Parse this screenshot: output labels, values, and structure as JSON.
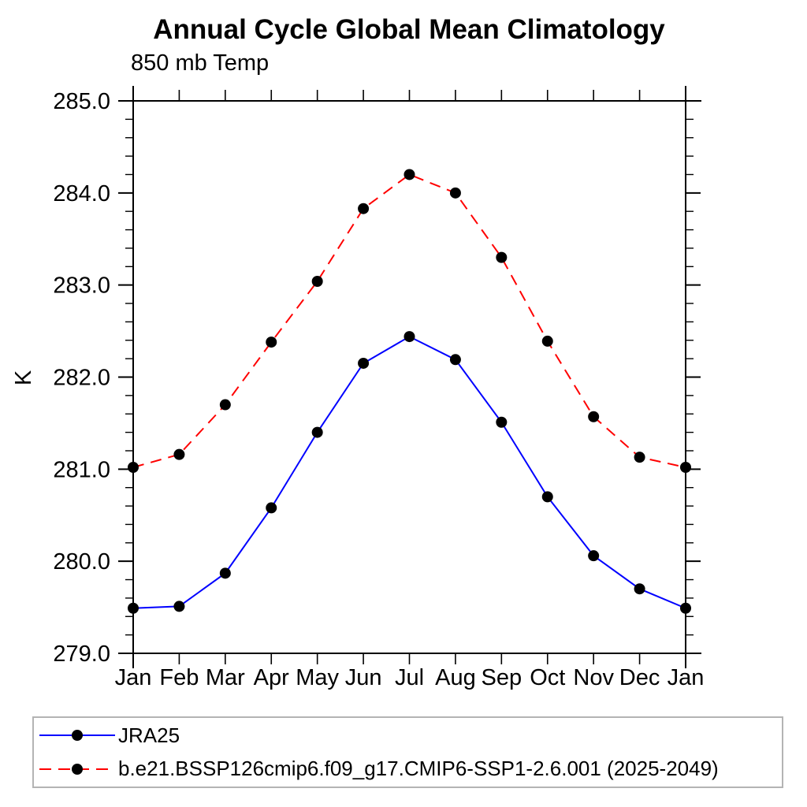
{
  "chart_data": {
    "type": "line",
    "title": "Annual Cycle Global Mean Climatology",
    "subtitle": "850 mb Temp",
    "ylabel": "K",
    "xlabel": "",
    "categories": [
      "Jan",
      "Feb",
      "Mar",
      "Apr",
      "May",
      "Jun",
      "Jul",
      "Aug",
      "Sep",
      "Oct",
      "Nov",
      "Dec",
      "Jan"
    ],
    "ylim": [
      279.0,
      285.0
    ],
    "y_major_step": 1.0,
    "y_minor_step": 0.2,
    "y_tick_labels": [
      "279.0",
      "280.0",
      "281.0",
      "282.0",
      "283.0",
      "284.0",
      "285.0"
    ],
    "grid": false,
    "legend_position": "bottom-outside",
    "axis_color": "#000000",
    "legend_border_color": "#b4b4b4",
    "marker": "filled-circle",
    "marker_color": "#000000",
    "series": [
      {
        "name": "JRA25",
        "color": "#0000ff",
        "line_style": "solid",
        "values": [
          279.49,
          279.51,
          279.87,
          280.58,
          281.4,
          282.15,
          282.44,
          282.19,
          281.51,
          280.7,
          280.06,
          279.7,
          279.49
        ]
      },
      {
        "name": "b.e21.BSSP126cmip6.f09_g17.CMIP6-SSP1-2.6.001 (2025-2049)",
        "color": "#ff0000",
        "line_style": "dashed",
        "values": [
          281.02,
          281.16,
          281.7,
          282.38,
          283.04,
          283.83,
          284.2,
          284.0,
          283.3,
          282.39,
          281.57,
          281.13,
          281.02
        ]
      }
    ]
  }
}
